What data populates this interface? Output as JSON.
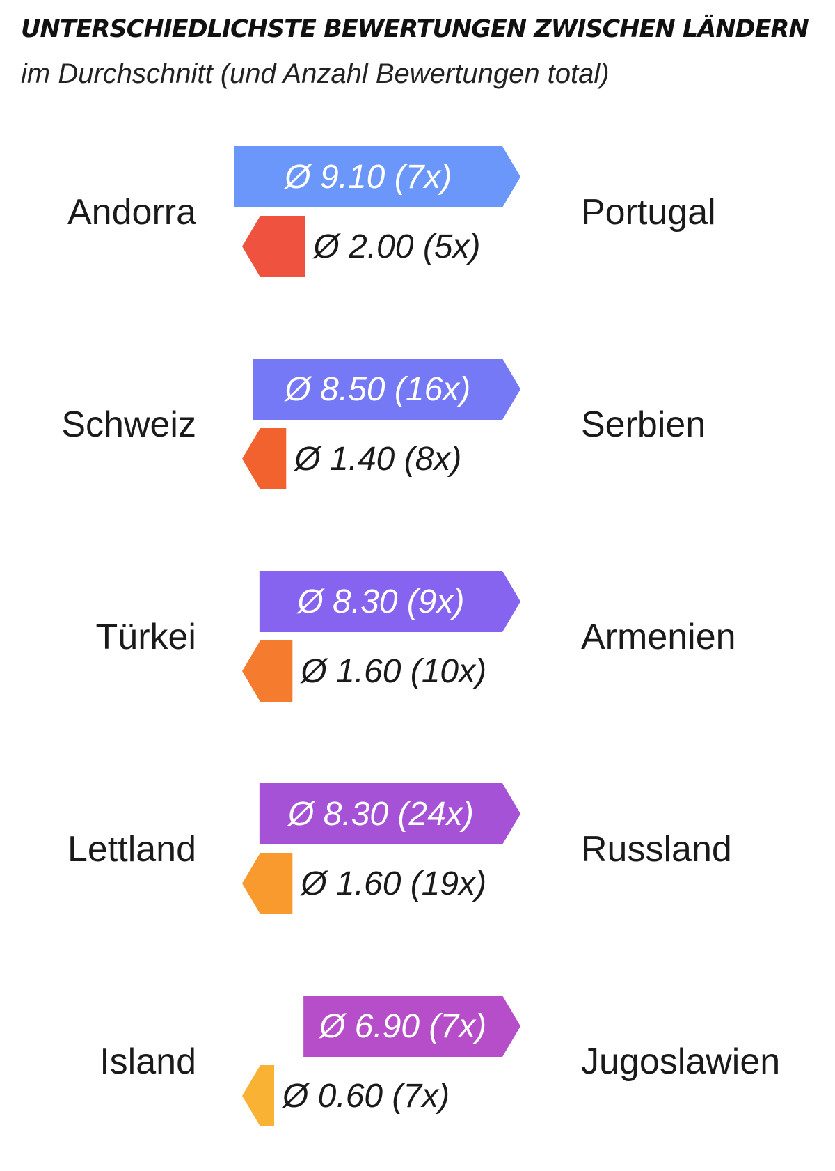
{
  "title": "UNTERSCHIEDLICHSTE BEWERTUNGEN ZWISCHEN LÄNDERN",
  "subtitle": "im Durchschnitt (und Anzahl Bewertungen total)",
  "chart_data": {
    "type": "bar",
    "title": "UNTERSCHIEDLICHSTE BEWERTUNGEN ZWISCHEN LÄNDERN",
    "subtitle": "im Durchschnitt (und Anzahl Bewertungen total)",
    "xlim": [
      0,
      10
    ],
    "pairs": [
      {
        "left": "Andorra",
        "right": "Portugal",
        "high": {
          "avg": 9.1,
          "count": 7,
          "label": "Ø 9.10 (7x)",
          "color": "#6a97f9"
        },
        "low": {
          "avg": 2.0,
          "count": 5,
          "label": "Ø 2.00 (5x)",
          "color": "#ef533f"
        }
      },
      {
        "left": "Schweiz",
        "right": "Serbien",
        "high": {
          "avg": 8.5,
          "count": 16,
          "label": "Ø 8.50 (16x)",
          "color": "#7579f5"
        },
        "low": {
          "avg": 1.4,
          "count": 8,
          "label": "Ø 1.40 (8x)",
          "color": "#f2622f"
        }
      },
      {
        "left": "Türkei",
        "right": "Armenien",
        "high": {
          "avg": 8.3,
          "count": 9,
          "label": "Ø 8.30 (9x)",
          "color": "#8764f0"
        },
        "low": {
          "avg": 1.6,
          "count": 10,
          "label": "Ø 1.60 (10x)",
          "color": "#f57c2e"
        }
      },
      {
        "left": "Lettland",
        "right": "Russland",
        "high": {
          "avg": 8.3,
          "count": 24,
          "label": "Ø 8.30 (24x)",
          "color": "#a552d6"
        },
        "low": {
          "avg": 1.6,
          "count": 19,
          "label": "Ø 1.60 (19x)",
          "color": "#f99a2f"
        }
      },
      {
        "left": "Island",
        "right": "Jugoslawien",
        "high": {
          "avg": 6.9,
          "count": 7,
          "label": "Ø 6.90 (7x)",
          "color": "#b54ec8"
        },
        "low": {
          "avg": 0.6,
          "count": 7,
          "label": "Ø 0.60 (7x)",
          "color": "#f9b233"
        }
      }
    ]
  }
}
